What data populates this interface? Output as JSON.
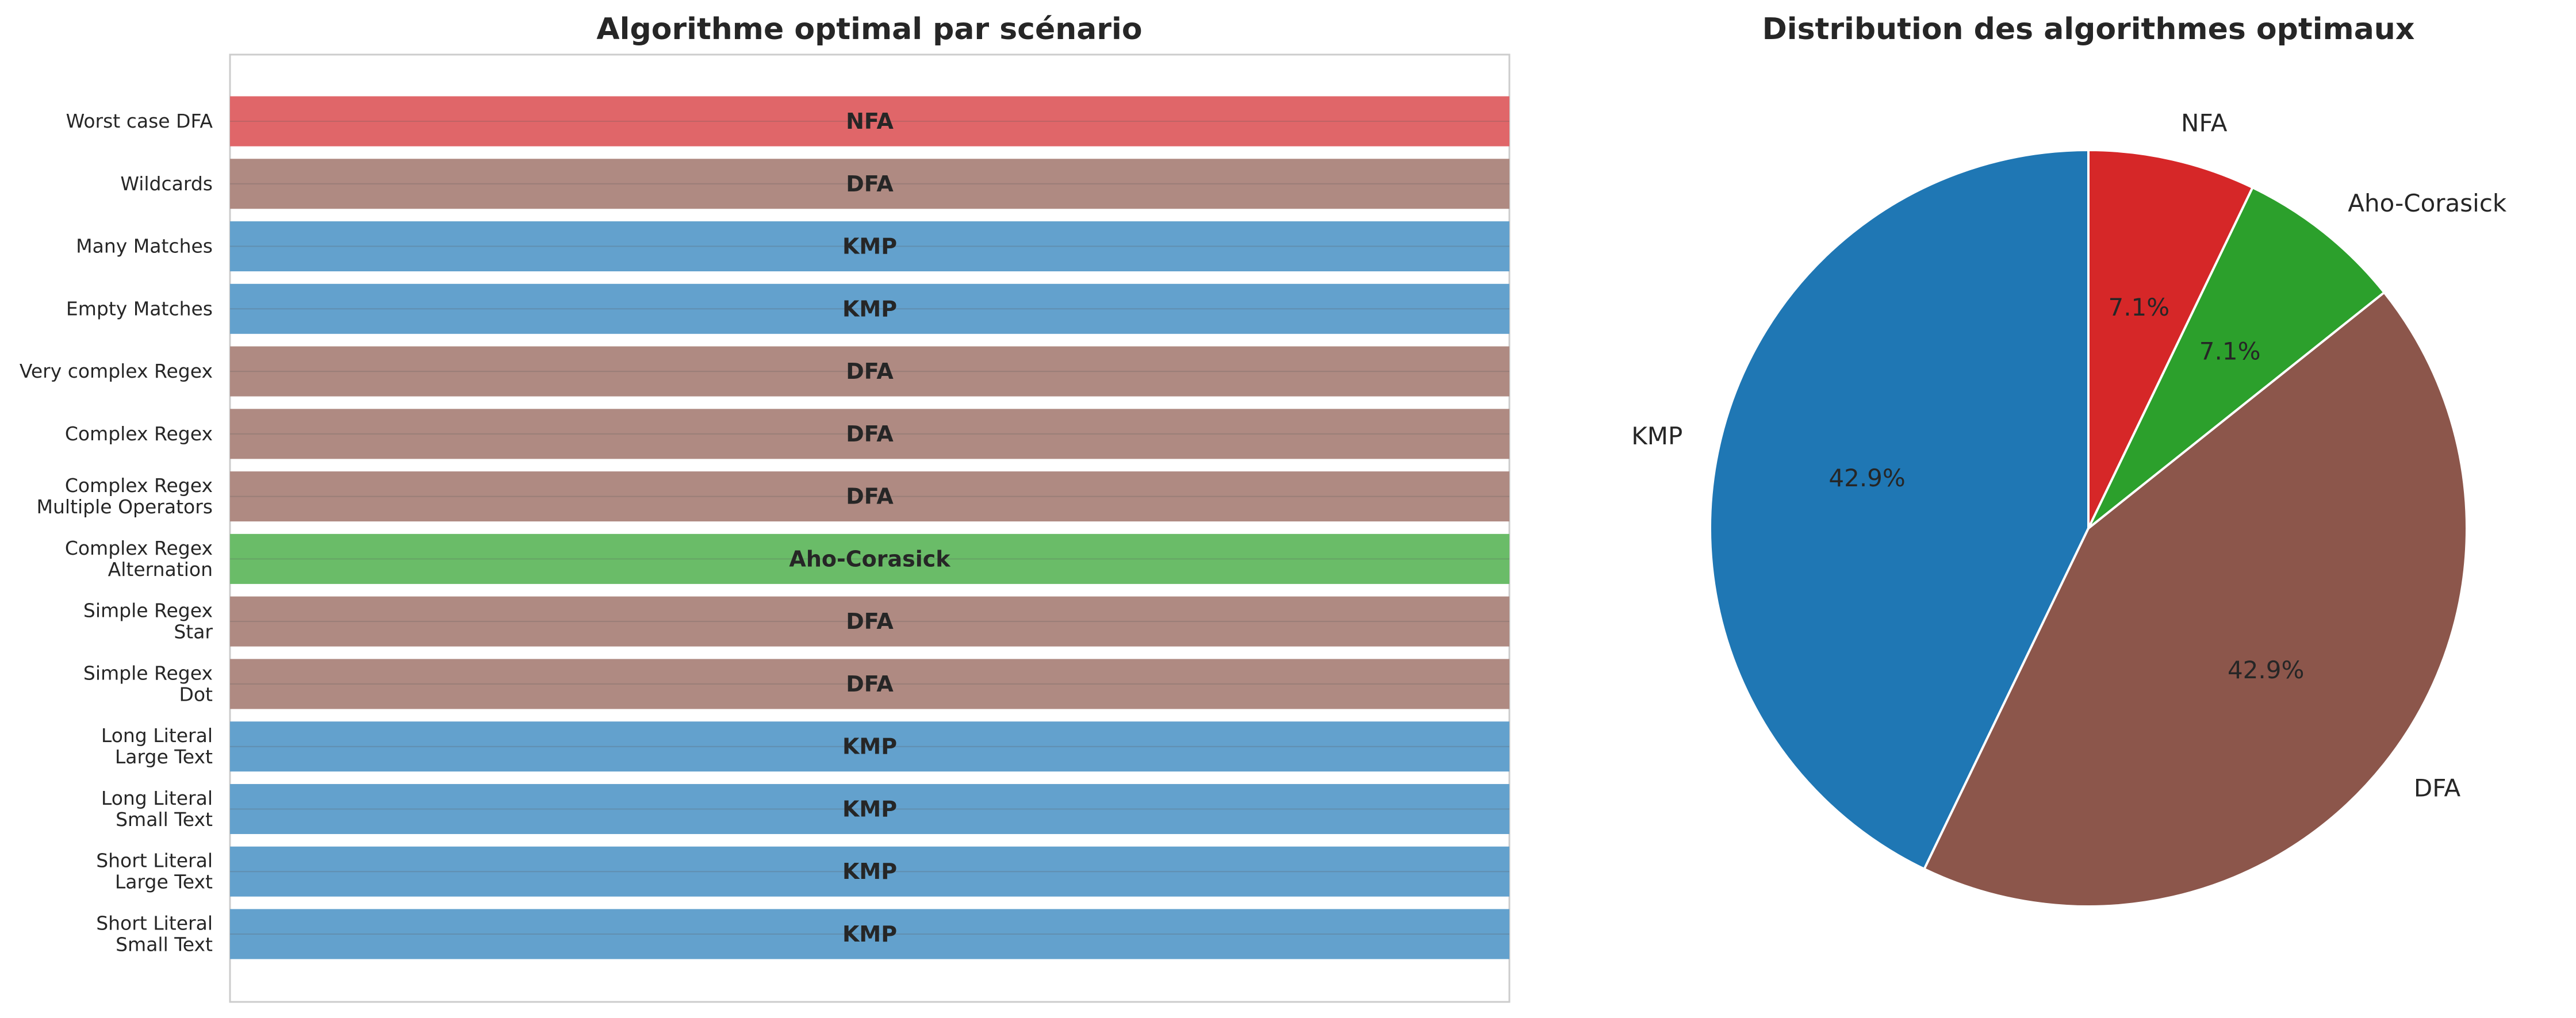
{
  "chart_data": [
    {
      "type": "bar",
      "orientation": "horizontal",
      "title": "Algorithme optimal par scénario",
      "xlabel": "",
      "ylabel": "",
      "grid": true,
      "categories": [
        "Worst case DFA",
        "Wildcards",
        "Many Matches",
        "Empty Matches",
        "Very complex Regex",
        "Complex Regex",
        "Complex Regex\nMultiple Operators",
        "Complex Regex\nAlternation",
        "Simple Regex\nStar",
        "Simple Regex\nDot",
        "Long Literal\nLarge Text",
        "Long Literal\nSmall Text",
        "Short Literal\nLarge Text",
        "Short Literal\nSmall Text"
      ],
      "values": [
        1,
        1,
        1,
        1,
        1,
        1,
        1,
        1,
        1,
        1,
        1,
        1,
        1,
        1
      ],
      "bar_labels": [
        "NFA",
        "DFA",
        "KMP",
        "KMP",
        "DFA",
        "DFA",
        "DFA",
        "Aho-Corasick",
        "DFA",
        "DFA",
        "KMP",
        "KMP",
        "KMP",
        "KMP"
      ],
      "colors": {
        "NFA": "#e06669",
        "DFA": "#af8a82",
        "KMP": "#63a1cd",
        "Aho-Corasick": "#6abc68"
      }
    },
    {
      "type": "pie",
      "title": "Distribution des algorithmes optimaux",
      "start_angle_deg": 90,
      "direction": "counterclockwise",
      "slices": [
        {
          "label": "KMP",
          "value": 6,
          "pct_label": "42.9%",
          "color": "#1f77b4"
        },
        {
          "label": "DFA",
          "value": 6,
          "pct_label": "42.9%",
          "color": "#8c564b"
        },
        {
          "label": "Aho-Corasick",
          "value": 1,
          "pct_label": "7.1%",
          "color": "#2ca02c"
        },
        {
          "label": "NFA",
          "value": 1,
          "pct_label": "7.1%",
          "color": "#d62728"
        }
      ]
    }
  ]
}
